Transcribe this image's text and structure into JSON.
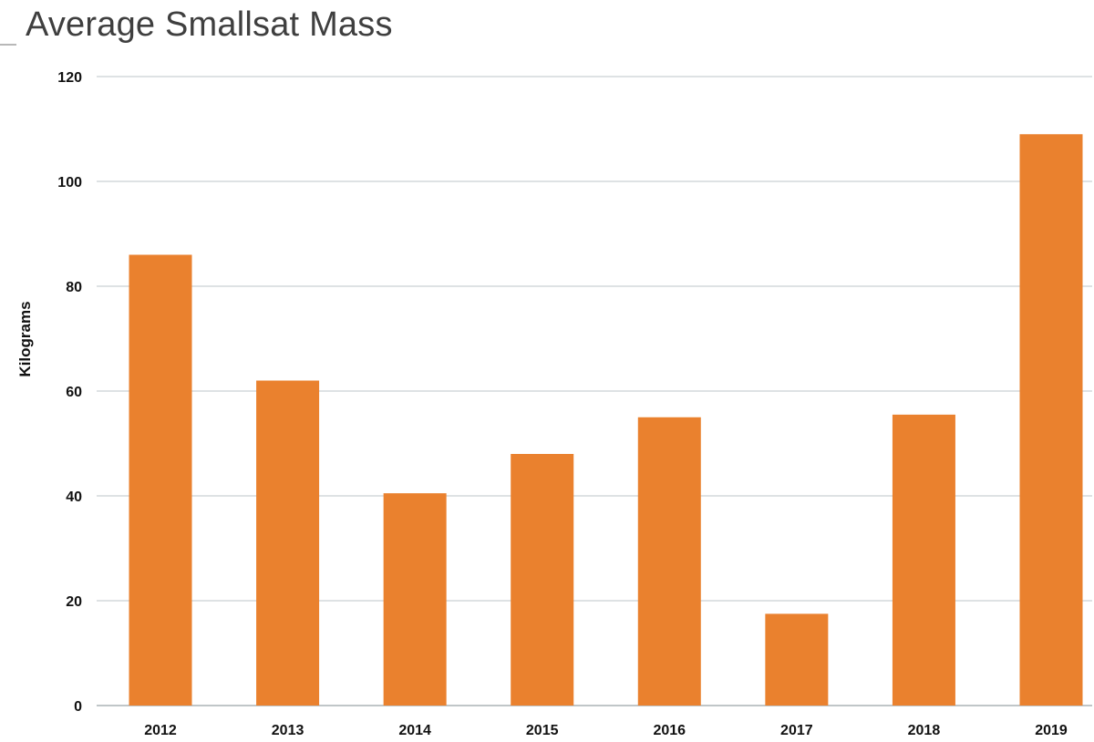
{
  "chart_data": {
    "type": "bar",
    "title": "Average Smallsat Mass",
    "xlabel": "",
    "ylabel": "Kilograms",
    "categories": [
      "2012",
      "2013",
      "2014",
      "2015",
      "2016",
      "2017",
      "2018",
      "2019"
    ],
    "values": [
      86,
      62,
      40.5,
      48,
      55,
      17.5,
      55.5,
      109
    ],
    "ylim": [
      0,
      120
    ],
    "yticks": [
      0,
      20,
      40,
      60,
      80,
      100,
      120
    ],
    "grid": true,
    "legend": "none",
    "bar_color": "#ea812e",
    "grid_color": "#c9d0d3"
  }
}
